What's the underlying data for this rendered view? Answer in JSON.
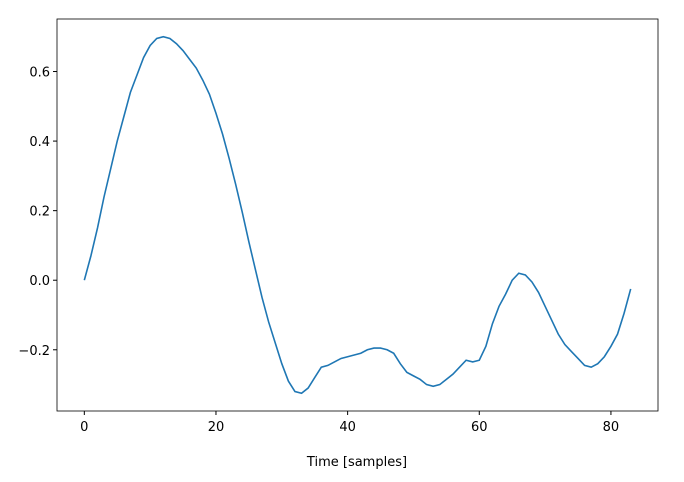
{
  "chart_data": {
    "type": "line",
    "xlabel": "Time [samples]",
    "x": [
      0,
      1,
      2,
      3,
      4,
      5,
      6,
      7,
      8,
      9,
      10,
      11,
      12,
      13,
      14,
      15,
      16,
      17,
      18,
      19,
      20,
      21,
      22,
      23,
      24,
      25,
      26,
      27,
      28,
      29,
      30,
      31,
      32,
      33,
      34,
      35,
      36,
      37,
      38,
      39,
      40,
      41,
      42,
      43,
      44,
      45,
      46,
      47,
      48,
      49,
      50,
      51,
      52,
      53,
      54,
      55,
      56,
      57,
      58,
      59,
      60,
      61,
      62,
      63,
      64,
      65,
      66,
      67,
      68,
      69,
      70,
      71,
      72,
      73,
      74,
      75,
      76,
      77,
      78,
      79,
      80,
      81,
      82,
      83
    ],
    "series": [
      {
        "color": "#1f77b4",
        "values": [
          0.0,
          0.07,
          0.15,
          0.24,
          0.32,
          0.4,
          0.47,
          0.54,
          0.59,
          0.64,
          0.675,
          0.695,
          0.7,
          0.695,
          0.68,
          0.66,
          0.635,
          0.61,
          0.575,
          0.535,
          0.48,
          0.42,
          0.35,
          0.275,
          0.195,
          0.11,
          0.03,
          -0.05,
          -0.12,
          -0.18,
          -0.24,
          -0.29,
          -0.32,
          -0.325,
          -0.31,
          -0.28,
          -0.25,
          -0.245,
          -0.235,
          -0.225,
          -0.22,
          -0.215,
          -0.21,
          -0.2,
          -0.195,
          -0.195,
          -0.2,
          -0.21,
          -0.24,
          -0.265,
          -0.275,
          -0.285,
          -0.3,
          -0.305,
          -0.3,
          -0.285,
          -0.27,
          -0.25,
          -0.23,
          -0.235,
          -0.23,
          -0.19,
          -0.125,
          -0.075,
          -0.04,
          0.0,
          0.02,
          0.015,
          -0.005,
          -0.035,
          -0.075,
          -0.115,
          -0.155,
          -0.185,
          -0.205,
          -0.225,
          -0.245,
          -0.25,
          -0.24,
          -0.22,
          -0.19,
          -0.155,
          -0.095,
          -0.025
        ]
      }
    ],
    "xlim": [
      -4.15,
      87.15
    ],
    "xticks": [
      0,
      20,
      40,
      60,
      80
    ],
    "ylim": [
      -0.376,
      0.751
    ],
    "yticks": [
      {
        "value": -0.2,
        "label": "−0.2"
      },
      {
        "value": 0,
        "label": "0.0"
      },
      0.2,
      0.4,
      0.6
    ]
  }
}
